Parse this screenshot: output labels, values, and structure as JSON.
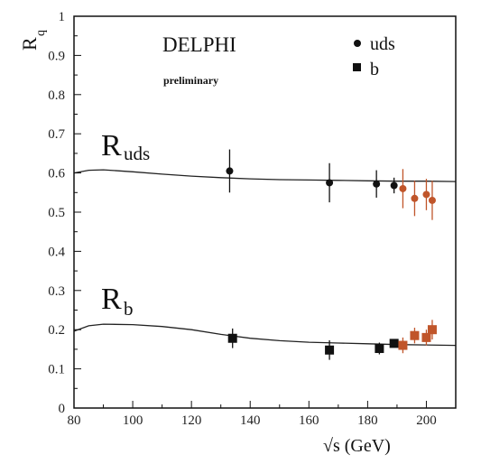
{
  "chart_data": {
    "type": "scatter",
    "xlabel": "√s (GeV)",
    "ylabel": "R",
    "ylabel_sub": "q",
    "xlim": [
      80,
      210
    ],
    "ylim": [
      0,
      1
    ],
    "x_ticks": [
      80,
      100,
      120,
      140,
      160,
      180,
      200
    ],
    "y_ticks": [
      0,
      0.1,
      0.2,
      0.3,
      0.4,
      0.5,
      0.6,
      0.7,
      0.8,
      0.9,
      1
    ],
    "grid": false,
    "annotations": {
      "experiment": "DELPHI",
      "status": "preliminary",
      "ruds_main": "R",
      "ruds_sub": "uds",
      "rb_main": "R",
      "rb_sub": "b"
    },
    "legend": {
      "placement": "top-right",
      "entries": [
        {
          "marker": "circle",
          "label": "uds"
        },
        {
          "marker": "square",
          "label": "b"
        }
      ]
    },
    "colors": {
      "black_points": "#111111",
      "orange_points": "#c0552a",
      "curve": "#222222"
    },
    "series": [
      {
        "group": "uds",
        "color_key": "black_points",
        "marker": "circle",
        "points": [
          {
            "x": 133,
            "y": 0.605,
            "err": 0.055
          },
          {
            "x": 167,
            "y": 0.575,
            "err": 0.05
          },
          {
            "x": 183,
            "y": 0.572,
            "err": 0.035
          },
          {
            "x": 189,
            "y": 0.568,
            "err": 0.02
          }
        ]
      },
      {
        "group": "uds",
        "color_key": "orange_points",
        "marker": "circle",
        "points": [
          {
            "x": 192,
            "y": 0.56,
            "err": 0.05
          },
          {
            "x": 196,
            "y": 0.535,
            "err": 0.045
          },
          {
            "x": 200,
            "y": 0.545,
            "err": 0.04
          },
          {
            "x": 202,
            "y": 0.53,
            "err": 0.05
          }
        ]
      },
      {
        "group": "b",
        "color_key": "black_points",
        "marker": "square",
        "points": [
          {
            "x": 134,
            "y": 0.178,
            "err": 0.025
          },
          {
            "x": 167,
            "y": 0.148,
            "err": 0.025
          },
          {
            "x": 184,
            "y": 0.152,
            "err": 0.015
          },
          {
            "x": 189,
            "y": 0.165,
            "err": 0.01
          }
        ]
      },
      {
        "group": "b",
        "color_key": "orange_points",
        "marker": "square",
        "points": [
          {
            "x": 192,
            "y": 0.16,
            "err": 0.02
          },
          {
            "x": 196,
            "y": 0.185,
            "err": 0.02
          },
          {
            "x": 200,
            "y": 0.18,
            "err": 0.02
          },
          {
            "x": 202,
            "y": 0.2,
            "err": 0.025
          }
        ]
      }
    ],
    "theory_curves": [
      {
        "group": "uds",
        "points": [
          [
            80,
            0.6
          ],
          [
            85,
            0.607
          ],
          [
            90,
            0.608
          ],
          [
            100,
            0.603
          ],
          [
            110,
            0.597
          ],
          [
            120,
            0.592
          ],
          [
            130,
            0.588
          ],
          [
            140,
            0.585
          ],
          [
            150,
            0.583
          ],
          [
            160,
            0.582
          ],
          [
            170,
            0.581
          ],
          [
            180,
            0.58
          ],
          [
            190,
            0.579
          ],
          [
            200,
            0.579
          ],
          [
            210,
            0.578
          ]
        ]
      },
      {
        "group": "b",
        "points": [
          [
            80,
            0.196
          ],
          [
            85,
            0.21
          ],
          [
            90,
            0.214
          ],
          [
            100,
            0.213
          ],
          [
            110,
            0.208
          ],
          [
            120,
            0.2
          ],
          [
            130,
            0.188
          ],
          [
            140,
            0.178
          ],
          [
            150,
            0.172
          ],
          [
            160,
            0.168
          ],
          [
            170,
            0.166
          ],
          [
            180,
            0.164
          ],
          [
            190,
            0.162
          ],
          [
            200,
            0.161
          ],
          [
            210,
            0.16
          ]
        ]
      }
    ]
  }
}
